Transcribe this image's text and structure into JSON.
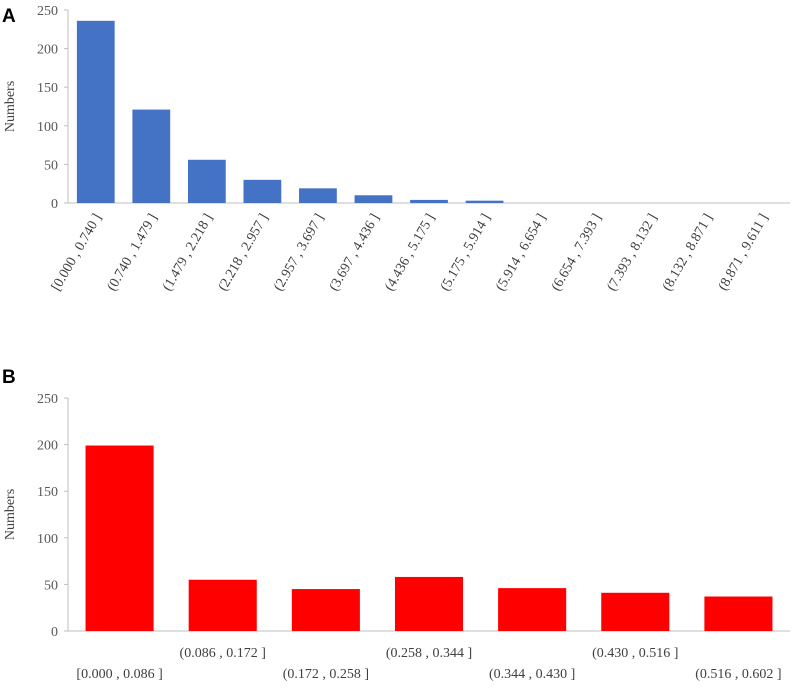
{
  "chart_data": [
    {
      "panel": "A",
      "type": "bar",
      "title": "",
      "xlabel": "",
      "ylabel": "Numbers",
      "ylim": [
        0,
        250
      ],
      "yticks": [
        0,
        50,
        100,
        150,
        200,
        250
      ],
      "grid": false,
      "color": "#4472C4",
      "label_style": "rotated",
      "categories": [
        "[0.000 , 0.740 ]",
        "(0.740 , 1.479 ]",
        "(1.479 , 2.218 ]",
        "(2.218 , 2.957 ]",
        "(2.957 , 3.697 ]",
        "(3.697 , 4.436 ]",
        "(4.436 , 5.175 ]",
        "(5.175 , 5.914 ]",
        "(5.914 , 6.654 ]",
        "(6.654 , 7.393 ]",
        "(7.393 , 8.132 ]",
        "(8.132 , 8.871 ]",
        "(8.871 , 9.611 ]"
      ],
      "values": [
        236,
        121,
        56,
        30,
        19,
        10,
        4,
        3,
        0,
        0,
        0,
        0,
        0
      ]
    },
    {
      "panel": "B",
      "type": "bar",
      "title": "",
      "xlabel": "",
      "ylabel": "Numbers",
      "ylim": [
        0,
        250
      ],
      "yticks": [
        0,
        50,
        100,
        150,
        200,
        250
      ],
      "grid": false,
      "color": "#FF0000",
      "label_style": "staggered",
      "categories": [
        "[0.000 , 0.086 ]",
        "(0.086 , 0.172 ]",
        "(0.172 , 0.258 ]",
        "(0.258 , 0.344 ]",
        "(0.344 , 0.430 ]",
        "(0.430 , 0.516 ]",
        "(0.516 , 0.602 ]"
      ],
      "values": [
        199,
        55,
        45,
        58,
        46,
        41,
        37
      ]
    }
  ]
}
